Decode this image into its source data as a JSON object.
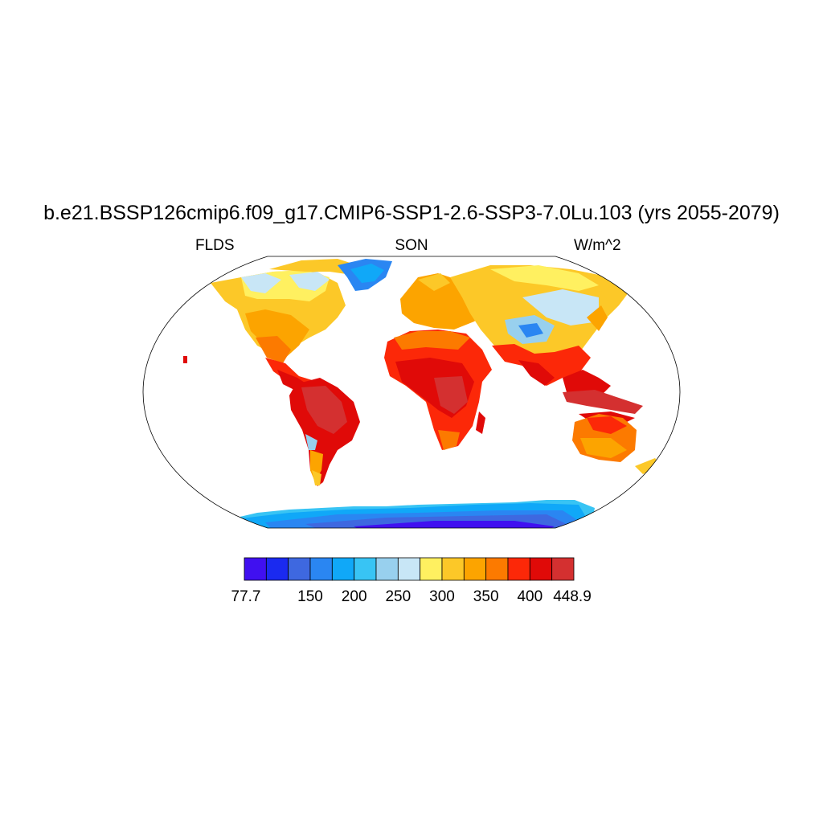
{
  "title": "b.e21.BSSP126cmip6.f09_g17.CMIP6-SSP1-2.6-SSP3-7.0Lu.103 (yrs 2055-2079)",
  "subtitle_left": "FLDS",
  "subtitle_center": "SON",
  "subtitle_right": "W/m^2",
  "colorbar": {
    "colors": [
      "#4010f0",
      "#1a2af0",
      "#3e68e0",
      "#2a86f2",
      "#10a8f8",
      "#38c4f4",
      "#98d0ee",
      "#c8e6f6",
      "#fff060",
      "#fcc828",
      "#fca400",
      "#fc7a00",
      "#fc2808",
      "#e00a08",
      "#d43030"
    ],
    "labels": [
      "77.7",
      "150",
      "200",
      "250",
      "300",
      "350",
      "400",
      "448.9"
    ],
    "min": 77.7,
    "max": 448.9
  },
  "map": {
    "projection": "Robinson",
    "ocean_color": "#ffffff",
    "field": "FLDS"
  }
}
